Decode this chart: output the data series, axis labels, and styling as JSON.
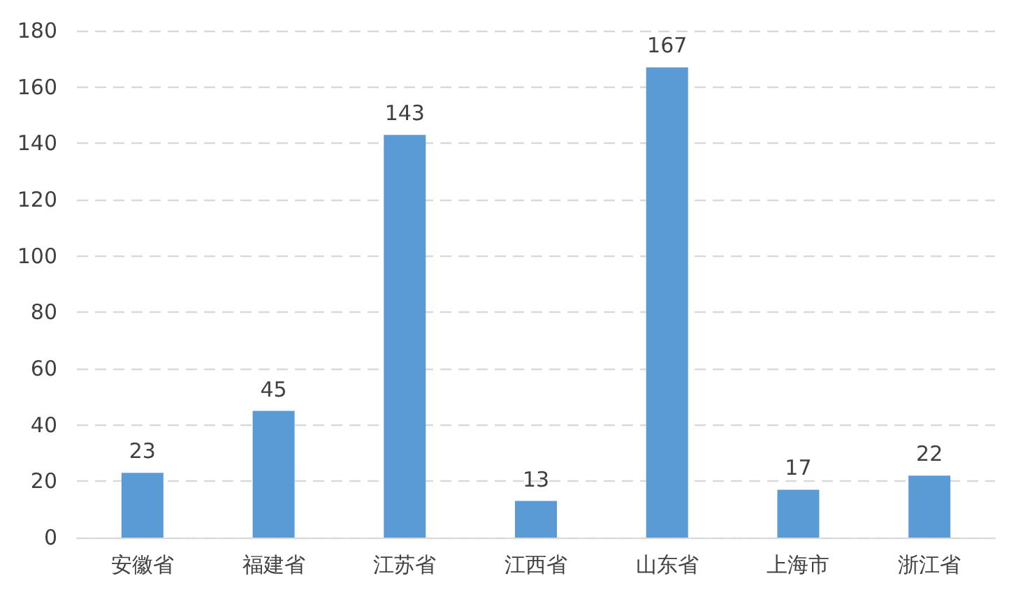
{
  "chart_data": {
    "type": "bar",
    "categories": [
      "安徽省",
      "福建省",
      "江苏省",
      "江西省",
      "山东省",
      "上海市",
      "浙江省"
    ],
    "values": [
      23,
      45,
      143,
      13,
      167,
      17,
      22
    ],
    "color": "#5b9bd5",
    "ylim": [
      0,
      180
    ],
    "yticks": [
      0,
      20,
      40,
      60,
      80,
      100,
      120,
      140,
      160,
      180
    ],
    "grid": "y",
    "data_labels": true
  }
}
